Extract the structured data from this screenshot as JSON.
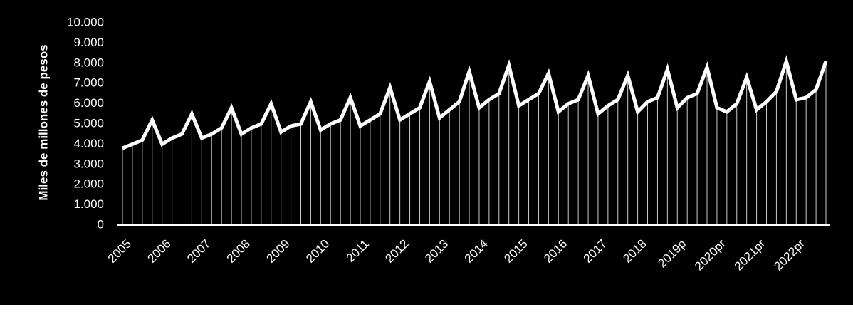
{
  "chart_data": {
    "type": "line",
    "y_label": "Miles de millones de pesos",
    "categories": [
      "2005",
      null,
      null,
      null,
      "2006",
      null,
      null,
      null,
      "2007",
      null,
      null,
      null,
      "2008",
      null,
      null,
      null,
      "2009",
      null,
      null,
      null,
      "2010",
      null,
      null,
      null,
      "2011",
      null,
      null,
      null,
      "2012",
      null,
      null,
      null,
      "2013",
      null,
      null,
      null,
      "2014",
      null,
      null,
      null,
      "2015",
      null,
      null,
      null,
      "2016",
      null,
      null,
      null,
      "2017",
      null,
      null,
      null,
      "2018",
      null,
      null,
      null,
      "2019p",
      null,
      null,
      null,
      "2020pr",
      null,
      null,
      null,
      "2021pr",
      null,
      null,
      null,
      "2022pr",
      null,
      null,
      null
    ],
    "series": [
      {
        "color": "#ffffff",
        "values": [
          3800,
          4000,
          4200,
          5200,
          4000,
          4300,
          4500,
          5500,
          4300,
          4500,
          4800,
          5800,
          4500,
          4800,
          5000,
          6000,
          4600,
          4900,
          5000,
          6100,
          4700,
          5000,
          5200,
          6300,
          4900,
          5200,
          5500,
          6800,
          5200,
          5500,
          5800,
          7100,
          5300,
          5700,
          6100,
          7600,
          5800,
          6200,
          6500,
          7900,
          5900,
          6200,
          6500,
          7500,
          5600,
          6000,
          6200,
          7400,
          5500,
          5900,
          6200,
          7400,
          5600,
          6100,
          6300,
          7700,
          5800,
          6300,
          6500,
          7800,
          5800,
          5600,
          6000,
          7300,
          5700,
          6100,
          6600,
          8100,
          6200,
          6300,
          6700,
          8100
        ]
      }
    ],
    "ylim": [
      0,
      10000
    ],
    "yticks": [
      0,
      {
        "value": 1000,
        "label": "1.000"
      },
      {
        "value": 2000,
        "label": "2.000"
      },
      {
        "value": 3000,
        "label": "3.000"
      },
      {
        "value": 4000,
        "label": "4.000"
      },
      {
        "value": 5000,
        "label": "5.000"
      },
      {
        "value": 6000,
        "label": "6.000"
      },
      {
        "value": 7000,
        "label": "7.000"
      },
      {
        "value": 8000,
        "label": "8.000"
      },
      {
        "value": 9000,
        "label": "9.000"
      },
      {
        "value": 10000,
        "label": "10.000"
      }
    ],
    "drop_lines": true
  }
}
